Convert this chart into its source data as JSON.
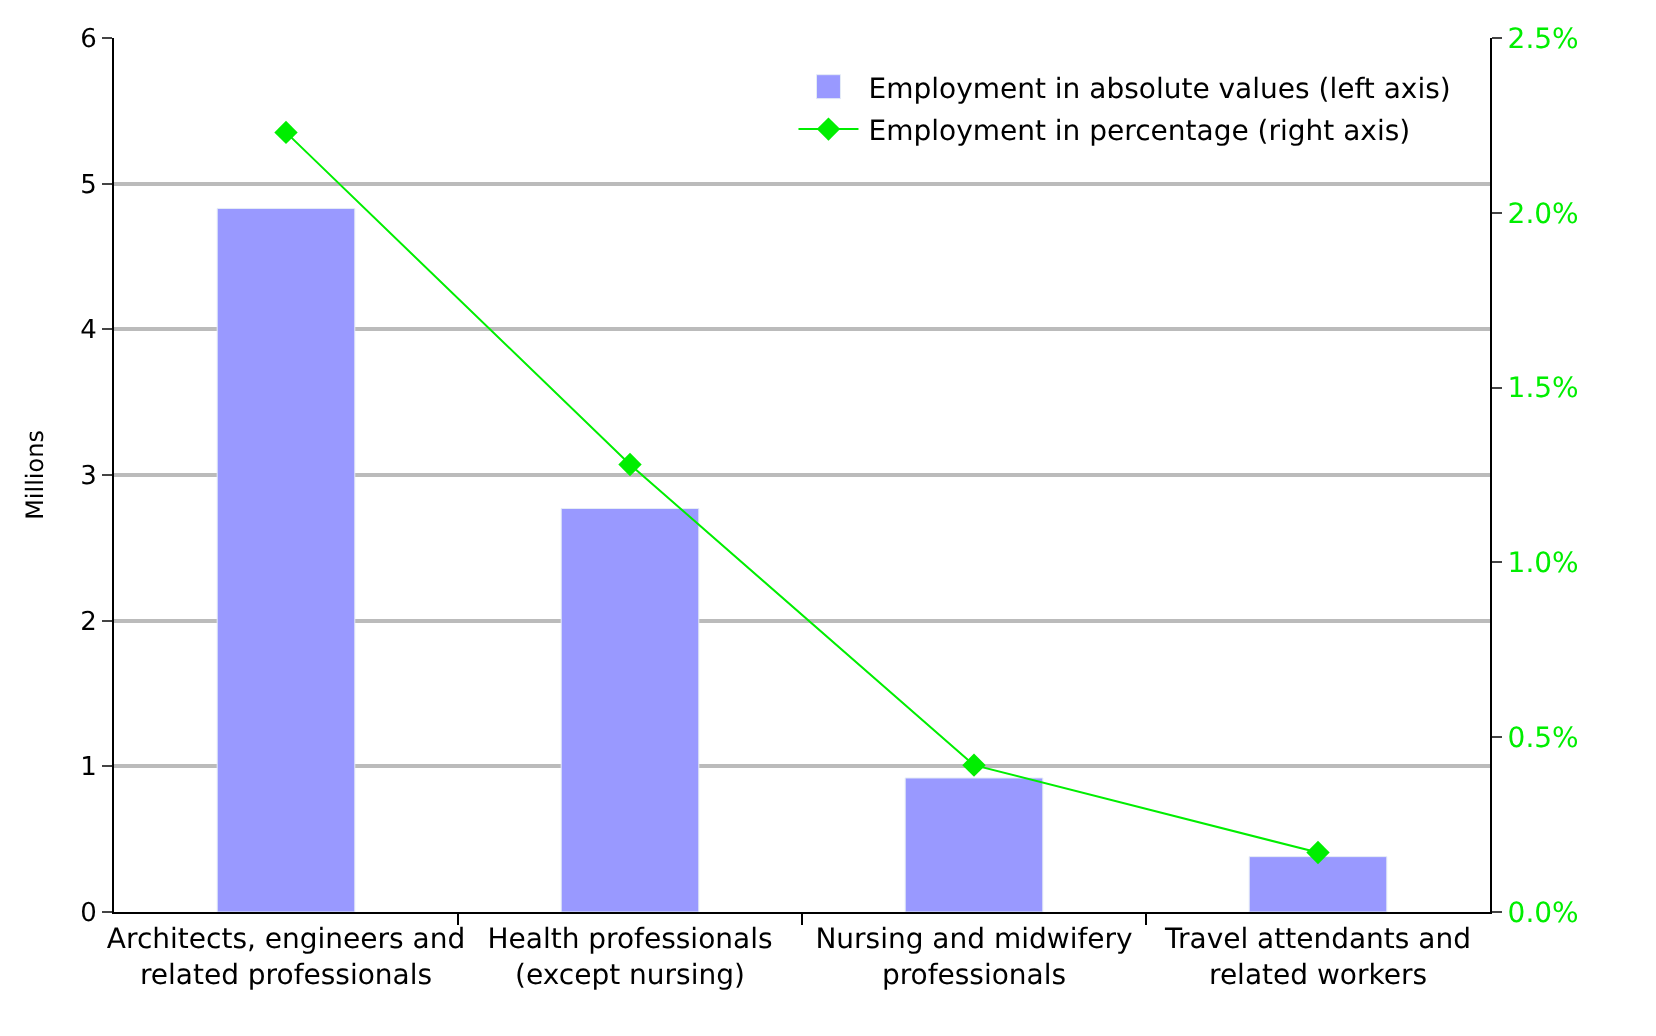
{
  "chart_data": {
    "type": "bar",
    "ylabel": "Millions",
    "categories": [
      "Architects, engineers and related professionals",
      "Health professionals (except nursing)",
      "Nursing and midwifery professionals",
      "Travel attendants and related workers"
    ],
    "series": [
      {
        "name": "Employment in absolute values (left axis)",
        "color": "#9999ff",
        "values": [
          4.83,
          2.77,
          0.92,
          0.38
        ]
      },
      {
        "name": "Employment in percentage (right axis)",
        "type": "line",
        "axis": "y2",
        "color": "#00ee00",
        "marker": "diamond",
        "values": [
          2.23,
          1.28,
          0.42,
          0.17
        ]
      }
    ],
    "ylim": [
      0,
      6
    ],
    "yticks": [
      0,
      1,
      2,
      3,
      4,
      5,
      6
    ],
    "y2lim": [
      0,
      2.5
    ],
    "y2ticks": [
      {
        "value": 0,
        "label": "0.0%"
      },
      {
        "value": 0.5,
        "label": "0.5%"
      },
      {
        "value": 1,
        "label": "1.0%"
      },
      {
        "value": 1.5,
        "label": "1.5%"
      },
      {
        "value": 2,
        "label": "2.0%"
      },
      {
        "value": 2.5,
        "label": "2.5%"
      }
    ],
    "grid": "y",
    "legend": "top right"
  }
}
